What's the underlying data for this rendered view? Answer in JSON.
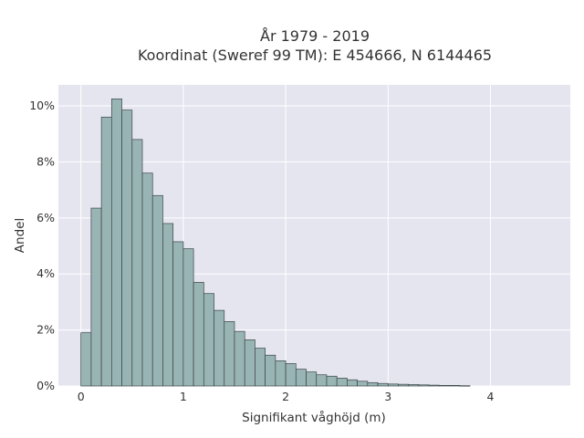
{
  "chart_data": {
    "type": "bar",
    "title_line1": "År 1979 - 2019",
    "title_line2": "Koordinat (Sweref 99 TM): E 454666, N 6144465",
    "xlabel": "Signifikant våghöjd (m)",
    "ylabel": "Andel",
    "x_ticks": [
      {
        "value": 0,
        "label": "0"
      },
      {
        "value": 1,
        "label": "1"
      },
      {
        "value": 2,
        "label": "2"
      },
      {
        "value": 3,
        "label": "3"
      },
      {
        "value": 4,
        "label": "4"
      }
    ],
    "y_ticks": [
      {
        "value": 0,
        "label": "0%"
      },
      {
        "value": 2,
        "label": "2%"
      },
      {
        "value": 4,
        "label": "4%"
      },
      {
        "value": 6,
        "label": "6%"
      },
      {
        "value": 8,
        "label": "8%"
      },
      {
        "value": 10,
        "label": "10%"
      }
    ],
    "xlim": [
      -0.22,
      4.78
    ],
    "ylim": [
      0,
      10.75
    ],
    "bin_width": 0.1,
    "bins_start": [
      0.0,
      0.1,
      0.2,
      0.3,
      0.4,
      0.5,
      0.6,
      0.7,
      0.8,
      0.9,
      1.0,
      1.1,
      1.2,
      1.3,
      1.4,
      1.5,
      1.6,
      1.7,
      1.8,
      1.9,
      2.0,
      2.1,
      2.2,
      2.3,
      2.4,
      2.5,
      2.6,
      2.7,
      2.8,
      2.9,
      3.0,
      3.1,
      3.2,
      3.3,
      3.4,
      3.5,
      3.6,
      3.7
    ],
    "values": [
      1.9,
      6.35,
      9.6,
      10.25,
      9.85,
      8.8,
      7.6,
      6.8,
      5.8,
      5.15,
      4.9,
      3.7,
      3.3,
      2.7,
      2.3,
      1.95,
      1.65,
      1.35,
      1.1,
      0.9,
      0.8,
      0.6,
      0.5,
      0.4,
      0.35,
      0.28,
      0.22,
      0.17,
      0.12,
      0.09,
      0.07,
      0.06,
      0.05,
      0.04,
      0.03,
      0.02,
      0.02,
      0.01
    ],
    "grid": true,
    "colors": {
      "bar_fill": "#99b4b4",
      "bar_stroke": "#3c4646",
      "plot_background": "#e5e5f0",
      "grid": "#ffffff"
    }
  }
}
